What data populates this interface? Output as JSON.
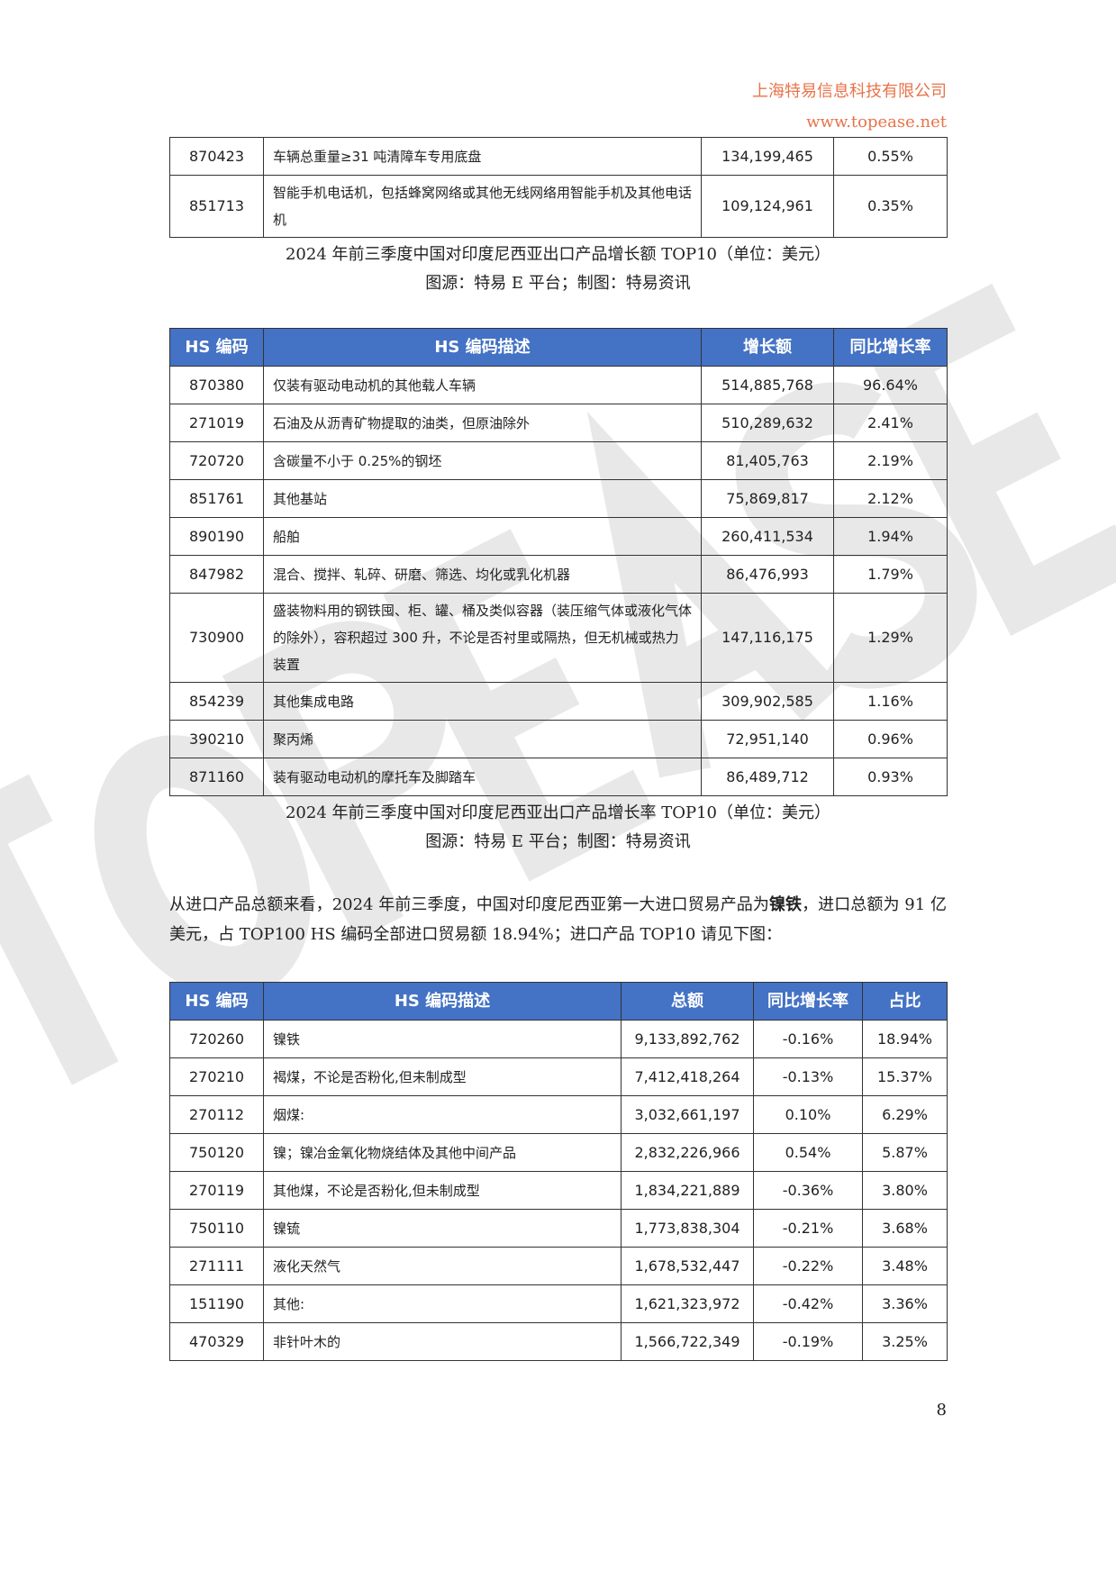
{
  "header": {
    "company": "上海特易信息科技有限公司",
    "website": "www.topease.net"
  },
  "watermark": "TOPEASE",
  "table_top_continued": {
    "rows": [
      [
        "870423",
        "车辆总重量≥31 吨清障车专用底盘",
        "134,199,465",
        "0.55%"
      ],
      [
        "851713",
        "智能手机电话机，包括蜂窝网络或其他无线网络用智能手机及其他电话机",
        "109,124,961",
        "0.35%"
      ]
    ]
  },
  "caption1": {
    "title": "2024 年前三季度中国对印度尼西亚出口产品增长额 TOP10（单位：美元）",
    "source": "图源：特易 E 平台；制图：特易资讯"
  },
  "table_growth_rate": {
    "headers": [
      "HS 编码",
      "HS 编码描述",
      "增长额",
      "同比增长率"
    ],
    "rows": [
      [
        "870380",
        "仅装有驱动电动机的其他载人车辆",
        "514,885,768",
        "96.64%"
      ],
      [
        "271019",
        "石油及从沥青矿物提取的油类，但原油除外",
        "510,289,632",
        "2.41%"
      ],
      [
        "720720",
        "含碳量不小于 0.25%的钢坯",
        "81,405,763",
        "2.19%"
      ],
      [
        "851761",
        "其他基站",
        "75,869,817",
        "2.12%"
      ],
      [
        "890190",
        "船舶",
        "260,411,534",
        "1.94%"
      ],
      [
        "847982",
        "混合、搅拌、轧碎、研磨、筛选、均化或乳化机器",
        "86,476,993",
        "1.79%"
      ],
      [
        "730900",
        "盛装物料用的钢铁囤、柜、罐、桶及类似容器（装压缩气体或液化气体的除外），容积超过 300 升，不论是否衬里或隔热，但无机械或热力装置",
        "147,116,175",
        "1.29%"
      ],
      [
        "854239",
        "其他集成电路",
        "309,902,585",
        "1.16%"
      ],
      [
        "390210",
        "聚丙烯",
        "72,951,140",
        "0.96%"
      ],
      [
        "871160",
        "装有驱动电动机的摩托车及脚踏车",
        "86,489,712",
        "0.93%"
      ]
    ]
  },
  "caption2": {
    "title": "2024 年前三季度中国对印度尼西亚出口产品增长率 TOP10（单位：美元）",
    "source": "图源：特易 E 平台；制图：特易资讯"
  },
  "paragraph": {
    "before": "从进口产品总额来看，2024 年前三季度，中国对印度尼西亚第一大进口贸易产品为",
    "bold": "镍铁",
    "after": "，进口总额为 91 亿美元，占 TOP100 HS 编码全部进口贸易额 18.94%；进口产品 TOP10 请见下图："
  },
  "table_import": {
    "headers": [
      "HS 编码",
      "HS 编码描述",
      "总额",
      "同比增长率",
      "占比"
    ],
    "rows": [
      [
        "720260",
        "镍铁",
        "9,133,892,762",
        "-0.16%",
        "18.94%"
      ],
      [
        "270210",
        "褐煤，不论是否粉化,但未制成型",
        "7,412,418,264",
        "-0.13%",
        "15.37%"
      ],
      [
        "270112",
        "烟煤:",
        "3,032,661,197",
        "0.10%",
        "6.29%"
      ],
      [
        "750120",
        "镍；镍冶金氧化物烧结体及其他中间产品",
        "2,832,226,966",
        "0.54%",
        "5.87%"
      ],
      [
        "270119",
        "其他煤，不论是否粉化,但未制成型",
        "1,834,221,889",
        "-0.36%",
        "3.80%"
      ],
      [
        "750110",
        "镍锍",
        "1,773,838,304",
        "-0.21%",
        "3.68%"
      ],
      [
        "271111",
        "液化天然气",
        "1,678,532,447",
        "-0.22%",
        "3.48%"
      ],
      [
        "151190",
        "其他:",
        "1,621,323,972",
        "-0.42%",
        "3.36%"
      ],
      [
        "470329",
        "非针叶木的",
        "1,566,722,349",
        "-0.19%",
        "3.25%"
      ]
    ]
  },
  "page_number": "8",
  "colors": {
    "header_blue": "#4472C4",
    "brand_orange": "#E8734A",
    "watermark": "#E6E6E6"
  }
}
